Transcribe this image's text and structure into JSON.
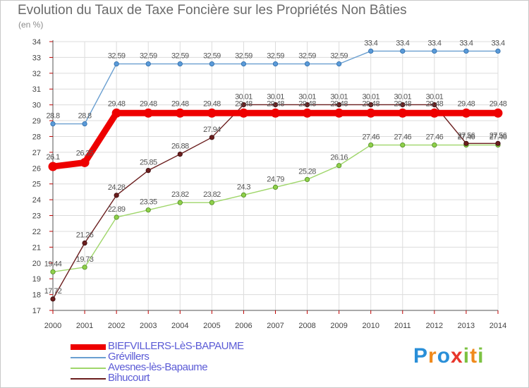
{
  "title": "Evolution du Taux de Taxe Foncière sur les Propriétés Non Bâties",
  "subtitle": "(en %)",
  "brand": {
    "text": "Proxiti",
    "letters": [
      "P",
      "r",
      "o",
      "x",
      "i",
      "t",
      "i"
    ],
    "colors": [
      "#2a8fd8",
      "#f08a1c",
      "#2a8fd8",
      "#e8362b",
      "#7cc242",
      "#f08a1c",
      "#7cc242"
    ]
  },
  "chart_data": {
    "type": "line",
    "title": "Evolution du Taux de Taxe Foncière sur les Propriétés Non Bâties",
    "ylabel": "(en %)",
    "xlabel": "",
    "ylim": [
      17,
      34
    ],
    "grid": true,
    "x": [
      "2000",
      "2001",
      "2002",
      "2003",
      "2004",
      "2005",
      "2006",
      "2007",
      "2008",
      "2009",
      "2010",
      "2011",
      "2012",
      "2013",
      "2014"
    ],
    "yticks": [
      "17",
      "18",
      "19",
      "20",
      "21",
      "22",
      "23",
      "24",
      "25",
      "26",
      "27",
      "28",
      "29",
      "30",
      "31",
      "32",
      "33",
      "34"
    ],
    "series": [
      {
        "name": "BIEFVILLERS-LèS-BAPAUME",
        "color": "#ee0000",
        "values": [
          26.1,
          26.35,
          29.48,
          29.48,
          29.48,
          29.48,
          29.48,
          29.48,
          29.48,
          29.48,
          29.48,
          29.48,
          29.48,
          29.48,
          29.48
        ],
        "labels": [
          "26.1",
          "26.35",
          "29.48",
          "29.48",
          "29.48",
          "29.48",
          "29.48",
          "29.48",
          "29.48",
          "29.48",
          "29.48",
          "29.48",
          "29.48",
          "29.48",
          "29.48"
        ]
      },
      {
        "name": "Grévillers",
        "color": "#6a9fd0",
        "values": [
          28.8,
          28.8,
          32.59,
          32.59,
          32.59,
          32.59,
          32.59,
          32.59,
          32.59,
          32.59,
          33.4,
          33.4,
          33.4,
          33.4,
          33.4
        ],
        "labels": [
          "28.8",
          "28.8",
          "32.59",
          "32.59",
          "32.59",
          "32.59",
          "32.59",
          "32.59",
          "32.59",
          "32.59",
          "33.4",
          "33.4",
          "33.4",
          "33.4",
          "33.4"
        ]
      },
      {
        "name": "Avesnes-lès-Bapaume",
        "color": "#9fd66a",
        "values": [
          19.44,
          19.73,
          22.89,
          23.35,
          23.82,
          23.82,
          24.3,
          24.79,
          25.28,
          26.16,
          27.46,
          27.46,
          27.46,
          27.46,
          27.46
        ],
        "labels": [
          "19.44",
          "19.73",
          "22.89",
          "23.35",
          "23.82",
          "23.82",
          "24.3",
          "24.79",
          "25.28",
          "26.16",
          "27.46",
          "27.46",
          "27.46",
          "27.46",
          "27.46"
        ]
      },
      {
        "name": "Bihucourt",
        "color": "#6b1e1e",
        "values": [
          17.72,
          21.26,
          24.28,
          25.85,
          26.88,
          27.94,
          30.01,
          30.01,
          30.01,
          30.01,
          30.01,
          30.01,
          30.01,
          27.56,
          27.56
        ],
        "labels": [
          "17.72",
          "21.26",
          "24.28",
          "25.85",
          "26.88",
          "27.94",
          "30.01",
          "30.01",
          "30.01",
          "30.01",
          "30.01",
          "30.01",
          "30.01",
          "27.56",
          "27.56"
        ]
      }
    ],
    "legend": "bottom-left"
  }
}
